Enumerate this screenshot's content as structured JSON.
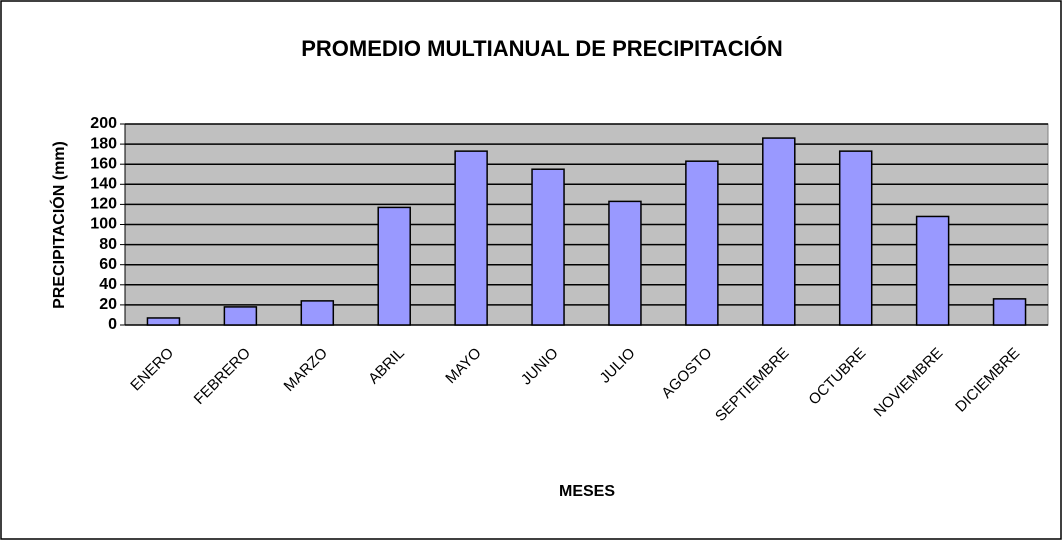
{
  "chart_data": {
    "type": "bar",
    "title": "PROMEDIO MULTIANUAL DE PRECIPITACIÓN",
    "x_label": "MESES",
    "y_label": "PRECIPITACIÓN (mm)",
    "categories": [
      "ENERO",
      "FEBRERO",
      "MARZO",
      "ABRIL",
      "MAYO",
      "JUNIO",
      "JULIO",
      "AGOSTO",
      "SEPTIEMBRE",
      "OCTUBRE",
      "NOVIEMBRE",
      "DICIEMBRE"
    ],
    "values": [
      7,
      18,
      24,
      117,
      173,
      155,
      123,
      163,
      186,
      173,
      108,
      26
    ],
    "color": "#9999ff",
    "ylim": [
      0,
      200
    ],
    "yticks": [
      0,
      20,
      40,
      60,
      80,
      100,
      120,
      140,
      160,
      180,
      200
    ],
    "grid": true
  }
}
